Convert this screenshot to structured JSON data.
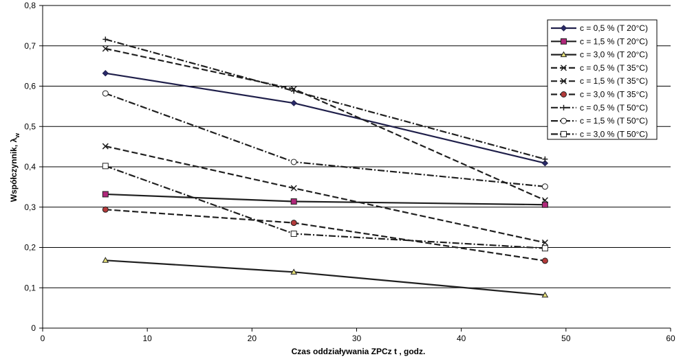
{
  "chart_data": {
    "type": "line",
    "title": "",
    "xlabel": "Czas oddziaływania ZPCz t , godz.",
    "ylabel_main": "Współczynnik, λ",
    "ylabel_sub": "w",
    "xlim": [
      0,
      60
    ],
    "ylim": [
      0,
      0.8
    ],
    "xticks": [
      0,
      10,
      20,
      30,
      40,
      50,
      60
    ],
    "xtick_labels": [
      "0",
      "10",
      "20",
      "30",
      "40",
      "50",
      "60"
    ],
    "yticks": [
      0,
      0.1,
      0.2,
      0.3,
      0.4,
      0.5,
      0.6,
      0.7,
      0.8
    ],
    "ytick_labels": [
      "0",
      "0,1",
      "0,2",
      "0,3",
      "0,4",
      "0,5",
      "0,6",
      "0,7",
      "0,8"
    ],
    "grid": "horizontal",
    "legend_position": "top-right",
    "x": [
      6,
      24,
      48
    ],
    "series": [
      {
        "name": "c = 0,5 % (T 20°C)",
        "values": [
          0.632,
          0.558,
          0.409
        ],
        "color": "#1f1f4a",
        "marker": "diamond",
        "marker_fill": "#2a2a6a",
        "dash": "solid"
      },
      {
        "name": "c = 1,5 % (T 20°C)",
        "values": [
          0.332,
          0.314,
          0.306
        ],
        "color": "#1f1f1f",
        "marker": "square",
        "marker_fill": "#b0287a",
        "dash": "solid"
      },
      {
        "name": "c = 3,0 % (T 20°C)",
        "values": [
          0.168,
          0.139,
          0.082
        ],
        "color": "#1f1f1f",
        "marker": "triangle",
        "marker_fill": "#e6e07a",
        "dash": "solid"
      },
      {
        "name": "c = 0,5 % (T 35°C)",
        "values": [
          0.693,
          0.593,
          0.317
        ],
        "color": "#1f1f1f",
        "marker": "x",
        "marker_fill": "none",
        "dash": "dash"
      },
      {
        "name": "c = 1,5 % (T 35°C)",
        "values": [
          0.451,
          0.347,
          0.212
        ],
        "color": "#1f1f1f",
        "marker": "x",
        "marker_fill": "none",
        "dash": "dash"
      },
      {
        "name": "c = 3,0 % (T 35°C)",
        "values": [
          0.294,
          0.261,
          0.167
        ],
        "color": "#1f1f1f",
        "marker": "circle",
        "marker_fill": "#b33a3a",
        "dash": "dash"
      },
      {
        "name": "c = 0,5 % (T 50°C)",
        "values": [
          0.716,
          0.588,
          0.419
        ],
        "color": "#1f1f1f",
        "marker": "plus",
        "marker_fill": "none",
        "dash": "dashdot"
      },
      {
        "name": "c = 1,5 % (T 50°C)",
        "values": [
          0.582,
          0.412,
          0.351
        ],
        "color": "#1f1f1f",
        "marker": "circle",
        "marker_fill": "#ffffff",
        "dash": "dashdot"
      },
      {
        "name": "c = 3,0 % (T 50°C)",
        "values": [
          0.402,
          0.234,
          0.198
        ],
        "color": "#1f1f1f",
        "marker": "square",
        "marker_fill": "#ffffff",
        "dash": "dashdot"
      }
    ]
  }
}
